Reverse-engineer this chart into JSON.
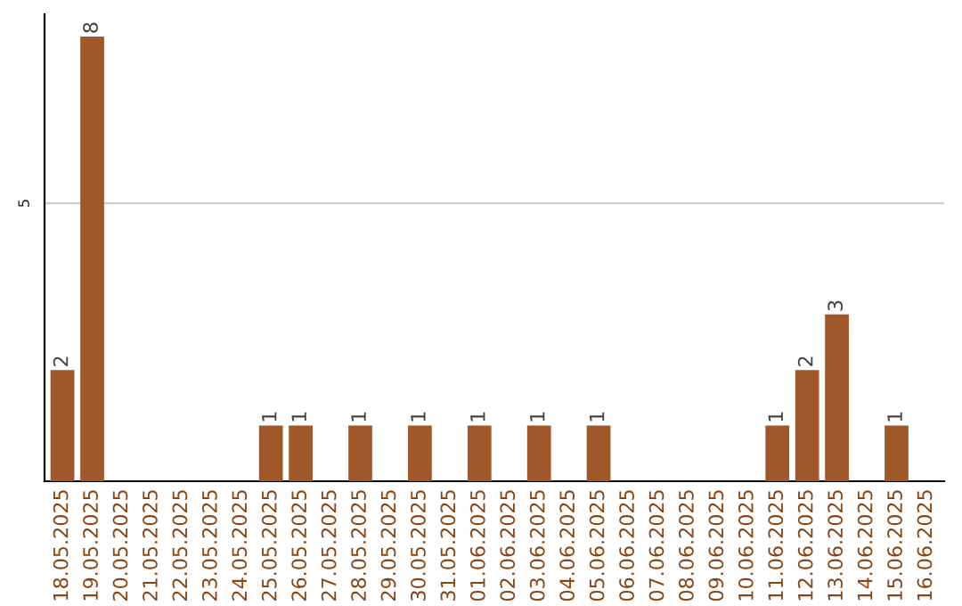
{
  "chart_data": {
    "type": "bar",
    "categories": [
      "18.05.2025",
      "19.05.2025",
      "20.05.2025",
      "21.05.2025",
      "22.05.2025",
      "23.05.2025",
      "24.05.2025",
      "25.05.2025",
      "26.05.2025",
      "27.05.2025",
      "28.05.2025",
      "29.05.2025",
      "30.05.2025",
      "31.05.2025",
      "01.06.2025",
      "02.06.2025",
      "03.06.2025",
      "04.06.2025",
      "05.06.2025",
      "06.06.2025",
      "07.06.2025",
      "08.06.2025",
      "09.06.2025",
      "10.06.2025",
      "11.06.2025",
      "12.06.2025",
      "13.06.2025",
      "14.06.2025",
      "15.06.2025",
      "16.06.2025"
    ],
    "values": [
      2,
      8,
      0,
      0,
      0,
      0,
      0,
      1,
      1,
      0,
      1,
      0,
      1,
      0,
      1,
      0,
      1,
      0,
      1,
      0,
      0,
      0,
      0,
      0,
      1,
      2,
      3,
      0,
      1,
      0
    ],
    "value_labels": [
      "2",
      "8",
      null,
      null,
      null,
      null,
      null,
      "1",
      "1",
      null,
      "1",
      null,
      "1",
      null,
      "1",
      null,
      "1",
      null,
      "1",
      null,
      null,
      null,
      null,
      null,
      "1",
      "2",
      "3",
      null,
      "1",
      null
    ],
    "color": "#a0582a",
    "ylim": [
      0,
      8.4
    ],
    "yticks": [
      5
    ],
    "grid": "y"
  }
}
